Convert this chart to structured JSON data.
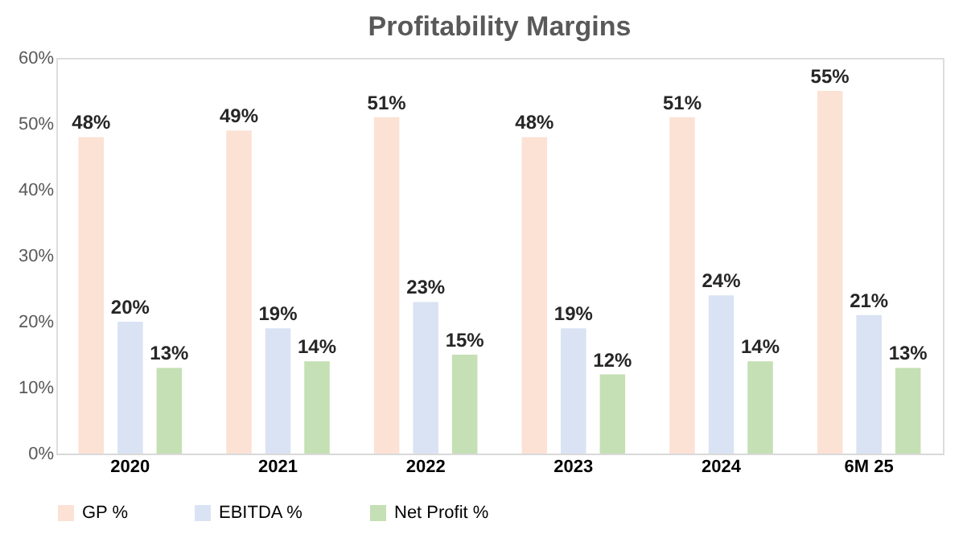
{
  "chart_data": {
    "type": "bar",
    "title": "Profitability Margins",
    "categories": [
      "2020",
      "2021",
      "2022",
      "2023",
      "2024",
      "6M 25"
    ],
    "series": [
      {
        "name": "GP %",
        "color": "#fbe2d5",
        "values": [
          48,
          49,
          51,
          48,
          51,
          55
        ],
        "value_labels": [
          "48%",
          "49%",
          "51%",
          "48%",
          "51%",
          "55%"
        ]
      },
      {
        "name": "EBITDA %",
        "color": "#dae3f3",
        "values": [
          20,
          19,
          23,
          19,
          24,
          21
        ],
        "value_labels": [
          "20%",
          "19%",
          "23%",
          "19%",
          "24%",
          "21%"
        ]
      },
      {
        "name": "Net Profit %",
        "color": "#c5e0b4",
        "values": [
          13,
          14,
          15,
          12,
          14,
          13
        ],
        "value_labels": [
          "13%",
          "14%",
          "15%",
          "12%",
          "14%",
          "13%"
        ]
      }
    ],
    "ylim": [
      0,
      60
    ],
    "yticks": [
      {
        "value": 0,
        "label": "0%"
      },
      {
        "value": 10,
        "label": "10%"
      },
      {
        "value": 20,
        "label": "20%"
      },
      {
        "value": 30,
        "label": "30%"
      },
      {
        "value": 40,
        "label": "40%"
      },
      {
        "value": 50,
        "label": "50%"
      },
      {
        "value": 60,
        "label": "60%"
      }
    ],
    "grid": false,
    "legend": "bottom"
  }
}
